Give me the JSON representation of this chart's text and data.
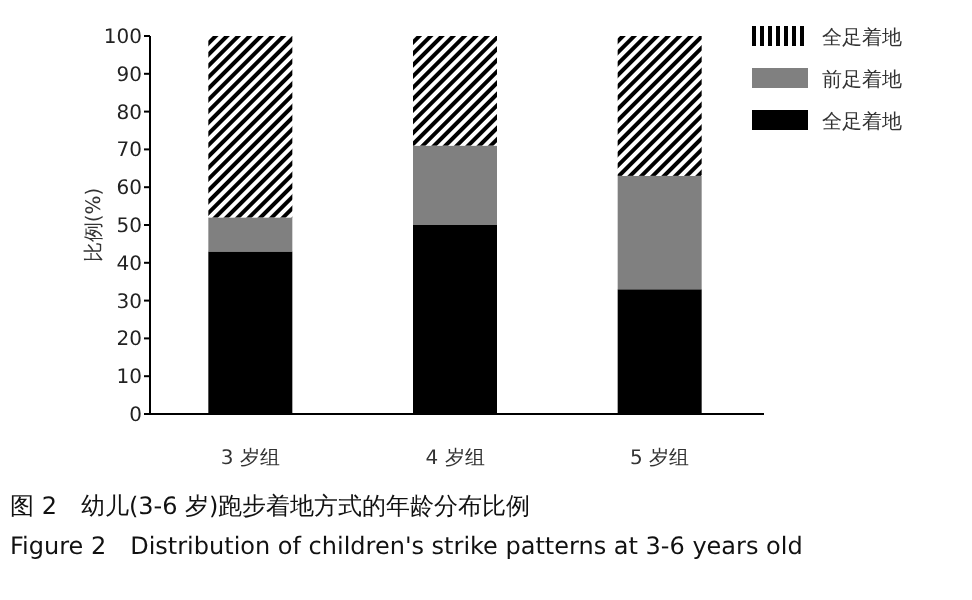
{
  "chart_data": {
    "type": "bar",
    "stacked": true,
    "ylabel": "比例(%)",
    "categories": [
      "3 岁组",
      "4 岁组",
      "5 岁组"
    ],
    "series": [
      {
        "name": "全足着地",
        "color": "#000000",
        "values": [
          43,
          50,
          33
        ]
      },
      {
        "name": "前足着地",
        "color": "#808080",
        "values": [
          9,
          21,
          30
        ]
      },
      {
        "name": "全足着地",
        "color": "#000000",
        "values": [
          48,
          29,
          37
        ]
      }
    ],
    "ylim": [
      0,
      100
    ],
    "yticks": [
      0,
      10,
      20,
      30,
      40,
      50,
      60,
      70,
      80,
      90,
      100
    ],
    "legend": "top right",
    "grid": false,
    "annotations": [
      "图 2　幼儿(3-6 岁)跑步着地方式的年龄分布比例",
      "Figure 2　Distribution of children's strike patterns at 3-6 years old"
    ]
  }
}
